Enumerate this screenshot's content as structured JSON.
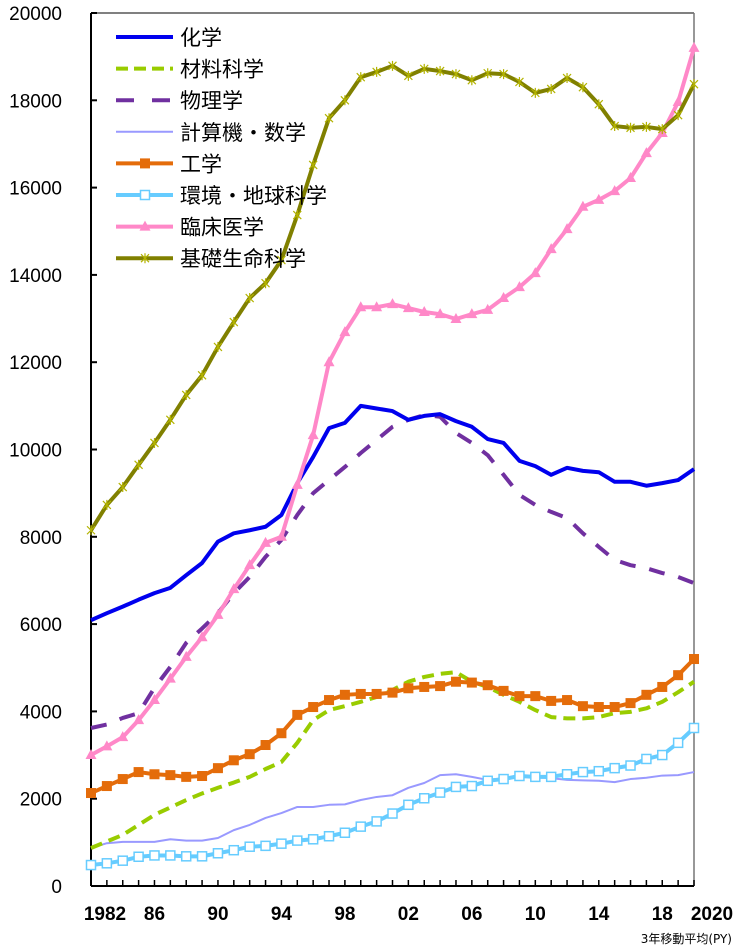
{
  "chart_data": {
    "type": "line",
    "title": "",
    "xlabel": "",
    "ylabel": "",
    "note": "3年移動平均(PY)",
    "xlim": [
      1982,
      2020
    ],
    "ylim": [
      0,
      20000
    ],
    "x_tick_labels": [
      "1982",
      "86",
      "90",
      "94",
      "98",
      "02",
      "06",
      "10",
      "14",
      "18",
      "2020"
    ],
    "x_tick_values": [
      1982,
      1986,
      1990,
      1994,
      1998,
      2002,
      2006,
      2010,
      2014,
      2018,
      2020
    ],
    "y_ticks": [
      0,
      2000,
      4000,
      6000,
      8000,
      10000,
      12000,
      14000,
      16000,
      18000,
      20000
    ],
    "y_tick_labels": [
      "0",
      "2000",
      "4000",
      "6000",
      "8000",
      "10000",
      "12000",
      "14000",
      "16000",
      "18000",
      "20000"
    ],
    "legend_position": "top-left",
    "grid": false,
    "x": [
      1982,
      1983,
      1984,
      1985,
      1986,
      1987,
      1988,
      1989,
      1990,
      1991,
      1992,
      1993,
      1994,
      1995,
      1996,
      1997,
      1998,
      1999,
      2000,
      2001,
      2002,
      2003,
      2004,
      2005,
      2006,
      2007,
      2008,
      2009,
      2010,
      2011,
      2012,
      2013,
      2014,
      2015,
      2016,
      2017,
      2018,
      2019,
      2020
    ],
    "series": [
      {
        "name": "化学",
        "color": "#0000ee",
        "style": "solid",
        "marker": "none",
        "values": [
          6090,
          6250,
          6400,
          6560,
          6710,
          6830,
          7120,
          7400,
          7890,
          8080,
          8150,
          8230,
          8500,
          9230,
          9830,
          10490,
          10610,
          11000,
          10940,
          10880,
          10680,
          10770,
          10810,
          10650,
          10520,
          10240,
          10150,
          9740,
          9620,
          9420,
          9580,
          9510,
          9480,
          9260,
          9260,
          9170,
          9230,
          9300,
          9550
        ]
      },
      {
        "name": "材料科学",
        "color": "#99cc00",
        "style": "dash-short",
        "marker": "none",
        "values": [
          870,
          1020,
          1170,
          1400,
          1630,
          1800,
          1970,
          2120,
          2250,
          2370,
          2500,
          2680,
          2840,
          3280,
          3800,
          4030,
          4120,
          4220,
          4330,
          4490,
          4680,
          4790,
          4860,
          4900,
          4680,
          4560,
          4380,
          4220,
          4030,
          3870,
          3840,
          3840,
          3870,
          3960,
          3990,
          4070,
          4220,
          4440,
          4680
        ]
      },
      {
        "name": "物理学",
        "color": "#7030a0",
        "style": "dash-long",
        "marker": "none",
        "values": [
          3620,
          3700,
          3850,
          3960,
          4540,
          5020,
          5570,
          5900,
          6250,
          6710,
          7080,
          7540,
          7930,
          8500,
          9000,
          9300,
          9600,
          9920,
          10220,
          10520,
          10680,
          10790,
          10750,
          10380,
          10150,
          9870,
          9420,
          8960,
          8730,
          8570,
          8430,
          8080,
          7770,
          7470,
          7350,
          7280,
          7170,
          7080,
          6940
        ]
      },
      {
        "name": "計算機・数学",
        "color": "#9999ff",
        "style": "thin",
        "marker": "none",
        "values": [
          870,
          980,
          1010,
          1010,
          1010,
          1070,
          1040,
          1040,
          1100,
          1280,
          1400,
          1560,
          1670,
          1810,
          1810,
          1860,
          1870,
          1970,
          2040,
          2080,
          2250,
          2360,
          2540,
          2560,
          2500,
          2430,
          2470,
          2500,
          2490,
          2470,
          2430,
          2420,
          2410,
          2380,
          2450,
          2480,
          2530,
          2540,
          2610
        ]
      },
      {
        "name": "工学",
        "color": "#e46c0a",
        "style": "solid",
        "marker": "square-filled",
        "values": [
          2130,
          2290,
          2450,
          2610,
          2560,
          2540,
          2500,
          2520,
          2700,
          2880,
          3020,
          3230,
          3500,
          3920,
          4100,
          4260,
          4380,
          4400,
          4400,
          4430,
          4530,
          4560,
          4580,
          4680,
          4660,
          4600,
          4470,
          4350,
          4350,
          4240,
          4260,
          4120,
          4100,
          4100,
          4190,
          4380,
          4560,
          4830,
          5200
        ]
      },
      {
        "name": "環境・地球科学",
        "color": "#66ccff",
        "style": "solid",
        "marker": "square-open",
        "values": [
          480,
          520,
          580,
          670,
          700,
          700,
          680,
          680,
          750,
          820,
          900,
          920,
          970,
          1040,
          1070,
          1140,
          1220,
          1360,
          1480,
          1660,
          1860,
          2010,
          2140,
          2270,
          2290,
          2410,
          2450,
          2520,
          2500,
          2500,
          2560,
          2610,
          2630,
          2700,
          2760,
          2910,
          3000,
          3280,
          3620
        ]
      },
      {
        "name": "臨床医学",
        "color": "#ff88c8",
        "style": "solid",
        "marker": "triangle",
        "values": [
          3000,
          3200,
          3410,
          3800,
          4260,
          4750,
          5250,
          5700,
          6210,
          6800,
          7350,
          7860,
          8000,
          9190,
          10330,
          12000,
          12690,
          13260,
          13260,
          13330,
          13240,
          13150,
          13100,
          12990,
          13100,
          13200,
          13470,
          13720,
          14040,
          14590,
          15050,
          15560,
          15720,
          15920,
          16220,
          16790,
          17250,
          17960,
          19200
        ]
      },
      {
        "name": "基礎生命科学",
        "color": "#808000",
        "style": "solid",
        "marker": "asterisk",
        "values": [
          8150,
          8730,
          9140,
          9650,
          10150,
          10680,
          11250,
          11700,
          12350,
          12920,
          13470,
          13810,
          14340,
          15370,
          16520,
          17590,
          18000,
          18530,
          18650,
          18790,
          18560,
          18720,
          18670,
          18600,
          18460,
          18620,
          18600,
          18420,
          18170,
          18260,
          18510,
          18300,
          17910,
          17410,
          17370,
          17390,
          17340,
          17660,
          18370
        ]
      }
    ]
  }
}
